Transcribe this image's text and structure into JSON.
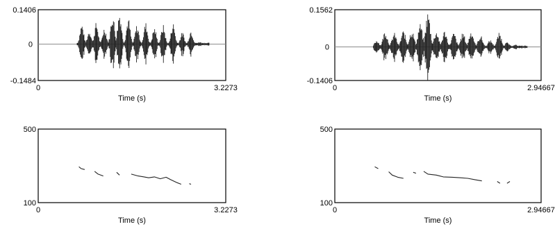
{
  "chart_data": [
    {
      "type": "line",
      "id": "waveform-left",
      "title": "",
      "xlabel": "Time (s)",
      "ylabel": "",
      "xlim": [
        0,
        3.2273
      ],
      "ylim": [
        -0.1484,
        0.1406
      ],
      "x_tick_labels": [
        "0",
        "3.2273"
      ],
      "y_tick_labels": [
        "0.1406",
        "0",
        "-0.1484"
      ],
      "segments": [
        [
          0.67,
          2.95
        ]
      ],
      "bursts": [
        {
          "t": 0.75,
          "amp": 0.085
        },
        {
          "t": 0.88,
          "amp": 0.06
        },
        {
          "t": 1.0,
          "amp": 0.09
        },
        {
          "t": 1.14,
          "amp": 0.07
        },
        {
          "t": 1.28,
          "amp": 0.13
        },
        {
          "t": 1.4,
          "amp": 0.14
        },
        {
          "t": 1.55,
          "amp": 0.11
        },
        {
          "t": 1.7,
          "amp": 0.08
        },
        {
          "t": 1.85,
          "amp": 0.09
        },
        {
          "t": 2.0,
          "amp": 0.07
        },
        {
          "t": 2.15,
          "amp": 0.08
        },
        {
          "t": 2.32,
          "amp": 0.09
        },
        {
          "t": 2.48,
          "amp": 0.05
        },
        {
          "t": 2.63,
          "amp": 0.06
        },
        {
          "t": 2.78,
          "amp": 0.01
        }
      ]
    },
    {
      "type": "line",
      "id": "waveform-right",
      "title": "",
      "xlabel": "Time (s)",
      "ylabel": "",
      "xlim": [
        0,
        2.94667
      ],
      "ylim": [
        -0.1406,
        0.1562
      ],
      "x_tick_labels": [
        "0",
        "2.94667"
      ],
      "y_tick_labels": [
        "0.1562",
        "0",
        "-0.1406"
      ],
      "segments": [
        [
          0.55,
          2.75
        ]
      ],
      "bursts": [
        {
          "t": 0.6,
          "amp": 0.03
        },
        {
          "t": 0.72,
          "amp": 0.07
        },
        {
          "t": 0.85,
          "amp": 0.06
        },
        {
          "t": 0.98,
          "amp": 0.07
        },
        {
          "t": 1.1,
          "amp": 0.075
        },
        {
          "t": 1.22,
          "amp": 0.1
        },
        {
          "t": 1.33,
          "amp": 0.15
        },
        {
          "t": 1.45,
          "amp": 0.07
        },
        {
          "t": 1.57,
          "amp": 0.07
        },
        {
          "t": 1.7,
          "amp": 0.06
        },
        {
          "t": 1.83,
          "amp": 0.06
        },
        {
          "t": 1.95,
          "amp": 0.07
        },
        {
          "t": 2.08,
          "amp": 0.05
        },
        {
          "t": 2.22,
          "amp": 0.03
        },
        {
          "t": 2.35,
          "amp": 0.06
        },
        {
          "t": 2.46,
          "amp": 0.02
        },
        {
          "t": 2.58,
          "amp": 0.01
        }
      ]
    },
    {
      "type": "line",
      "id": "pitch-left",
      "title": "",
      "xlabel": "Time (s)",
      "ylabel": "",
      "xlim": [
        0,
        3.2273
      ],
      "ylim": [
        100,
        500
      ],
      "x_tick_labels": [
        "0",
        "3.2273"
      ],
      "y_tick_labels": [
        "500",
        "100"
      ],
      "series": [
        {
          "values": [
            [
              0.7,
              295
            ],
            [
              0.74,
              285
            ],
            [
              0.8,
              280
            ]
          ]
        },
        {
          "values": [
            [
              0.97,
              270
            ],
            [
              1.03,
              255
            ],
            [
              1.12,
              245
            ]
          ]
        },
        {
          "values": [
            [
              1.35,
              265
            ],
            [
              1.4,
              250
            ]
          ]
        },
        {
          "values": [
            [
              1.6,
              255
            ],
            [
              1.72,
              245
            ],
            [
              1.82,
              240
            ],
            [
              1.9,
              235
            ],
            [
              2.0,
              240
            ],
            [
              2.1,
              230
            ],
            [
              2.2,
              238
            ],
            [
              2.28,
              225
            ],
            [
              2.38,
              210
            ],
            [
              2.46,
              200
            ]
          ]
        },
        {
          "values": [
            [
              2.6,
              203
            ],
            [
              2.63,
              200
            ]
          ]
        }
      ]
    },
    {
      "type": "line",
      "id": "pitch-right",
      "title": "",
      "xlabel": "Time (s)",
      "ylabel": "",
      "xlim": [
        0,
        2.94667
      ],
      "ylim": [
        100,
        500
      ],
      "x_tick_labels": [
        "0",
        "2.94667"
      ],
      "y_tick_labels": [
        "500",
        "100"
      ],
      "series": [
        {
          "values": [
            [
              0.57,
              295
            ],
            [
              0.62,
              285
            ]
          ]
        },
        {
          "values": [
            [
              0.77,
              268
            ],
            [
              0.82,
              250
            ],
            [
              0.9,
              238
            ],
            [
              0.98,
              232
            ]
          ]
        },
        {
          "values": [
            [
              1.12,
              265
            ],
            [
              1.16,
              260
            ]
          ]
        },
        {
          "values": [
            [
              1.27,
              270
            ],
            [
              1.33,
              255
            ],
            [
              1.45,
              250
            ],
            [
              1.55,
              240
            ],
            [
              1.68,
              238
            ],
            [
              1.8,
              235
            ],
            [
              1.9,
              232
            ],
            [
              2.0,
              225
            ],
            [
              2.1,
              218
            ]
          ]
        },
        {
          "values": [
            [
              2.32,
              215
            ],
            [
              2.36,
              205
            ]
          ]
        },
        {
          "values": [
            [
              2.46,
              205
            ],
            [
              2.5,
              215
            ]
          ]
        }
      ]
    }
  ]
}
